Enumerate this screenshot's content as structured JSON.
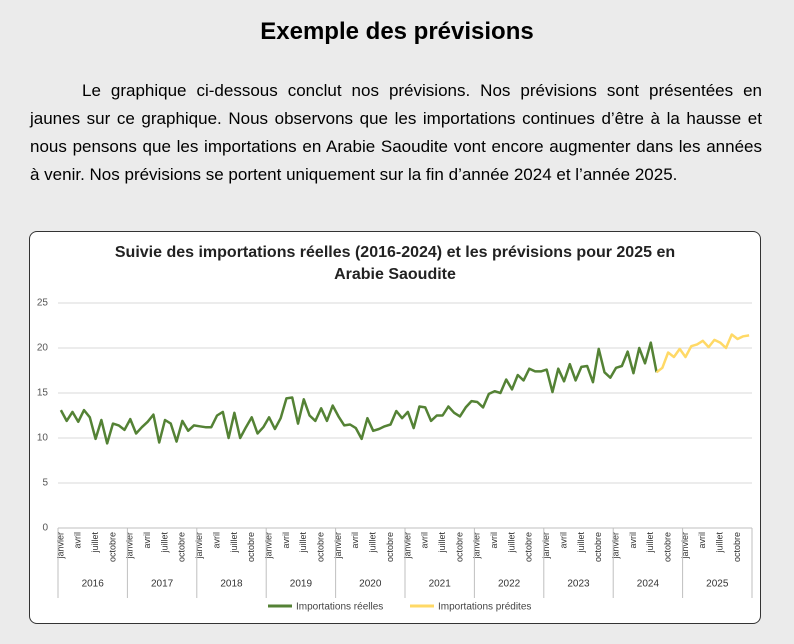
{
  "header": {
    "title": "Exemple des prévisions"
  },
  "paragraph": "Le graphique ci-dessous conclut nos prévisions. Nos prévisions sont présentées en jaunes sur ce graphique. Nous observons que les importations continues d’être à la hausse et nous pensons que les importations en Arabie Saoudite vont encore augmenter dans les années à venir. Nos prévisions se portent uniquement sur la fin d’année 2024 et l’année 2025.",
  "chart_data": {
    "type": "line",
    "title": "Suivie des importations réelles (2016-2024) et les prévisions pour 2025 en Arabie Saoudite",
    "categories": [
      "janvier",
      null,
      null,
      "avril",
      null,
      null,
      "juillet",
      null,
      null,
      "octobre",
      null,
      null,
      "janvier",
      null,
      null,
      "avril",
      null,
      null,
      "juillet",
      null,
      null,
      "octobre",
      null,
      null,
      "janvier",
      null,
      null,
      "avril",
      null,
      null,
      "juillet",
      null,
      null,
      "octobre",
      null,
      null,
      "janvier",
      null,
      null,
      "avril",
      null,
      null,
      "juillet",
      null,
      null,
      "octobre",
      null,
      null,
      "janvier",
      null,
      null,
      "avril",
      null,
      null,
      "juillet",
      null,
      null,
      "octobre",
      null,
      null,
      "janvier",
      null,
      null,
      "avril",
      null,
      null,
      "juillet",
      null,
      null,
      "octobre",
      null,
      null,
      "janvier",
      null,
      null,
      "avril",
      null,
      null,
      "juillet",
      null,
      null,
      "octobre",
      null,
      null,
      "janvier",
      null,
      null,
      "avril",
      null,
      null,
      "juillet",
      null,
      null,
      "octobre",
      null,
      null,
      "janvier",
      null,
      null,
      "avril",
      null,
      null,
      "juillet",
      null,
      null,
      "octobre",
      null,
      null,
      "janvier",
      null,
      null,
      "avril",
      null,
      null,
      "juillet",
      null,
      null,
      "octobre",
      null,
      null
    ],
    "years": [
      "2016",
      "2017",
      "2018",
      "2019",
      "2020",
      "2021",
      "2022",
      "2023",
      "2024",
      "2025"
    ],
    "series": [
      {
        "name": "Importations réelles",
        "color": "#548235",
        "values": [
          13.1,
          11.9,
          12.9,
          11.8,
          13.1,
          12.3,
          9.9,
          12.0,
          9.4,
          11.6,
          11.4,
          10.9,
          12.1,
          10.5,
          11.2,
          11.8,
          12.6,
          9.5,
          12.0,
          11.6,
          9.6,
          11.9,
          10.8,
          11.4,
          11.3,
          11.2,
          11.2,
          12.5,
          12.9,
          10.0,
          12.8,
          10.0,
          11.2,
          12.3,
          10.5,
          11.2,
          12.3,
          11.0,
          12.2,
          14.4,
          14.5,
          11.6,
          14.3,
          12.5,
          11.9,
          13.3,
          11.9,
          13.6,
          12.4,
          11.4,
          11.5,
          11.1,
          9.9,
          12.2,
          10.8,
          11.0,
          11.3,
          11.5,
          13.0,
          12.2,
          12.9,
          11.1,
          13.5,
          13.4,
          11.9,
          12.5,
          12.5,
          13.5,
          12.8,
          12.4,
          13.4,
          14.1,
          14.0,
          13.4,
          14.9,
          15.2,
          15.0,
          16.5,
          15.4,
          17.0,
          16.4,
          17.7,
          17.4,
          17.4,
          17.6,
          15.1,
          17.7,
          16.3,
          18.2,
          16.4,
          17.9,
          18.0,
          16.2,
          19.9,
          17.3,
          16.7,
          17.8,
          18.0,
          19.6,
          17.2,
          20.0,
          18.3,
          20.6,
          17.3,
          null,
          null,
          null,
          null,
          null,
          null,
          null,
          null,
          null,
          null,
          null,
          null,
          null,
          null,
          null,
          null
        ]
      },
      {
        "name": "Importations prédites",
        "color": "#ffd966",
        "values": [
          null,
          null,
          null,
          null,
          null,
          null,
          null,
          null,
          null,
          null,
          null,
          null,
          null,
          null,
          null,
          null,
          null,
          null,
          null,
          null,
          null,
          null,
          null,
          null,
          null,
          null,
          null,
          null,
          null,
          null,
          null,
          null,
          null,
          null,
          null,
          null,
          null,
          null,
          null,
          null,
          null,
          null,
          null,
          null,
          null,
          null,
          null,
          null,
          null,
          null,
          null,
          null,
          null,
          null,
          null,
          null,
          null,
          null,
          null,
          null,
          null,
          null,
          null,
          null,
          null,
          null,
          null,
          null,
          null,
          null,
          null,
          null,
          null,
          null,
          null,
          null,
          null,
          null,
          null,
          null,
          null,
          null,
          null,
          null,
          null,
          null,
          null,
          null,
          null,
          null,
          null,
          null,
          null,
          null,
          null,
          null,
          null,
          null,
          null,
          null,
          null,
          null,
          null,
          17.3,
          17.8,
          19.5,
          19.0,
          19.9,
          19.0,
          20.2,
          20.4,
          20.8,
          20.1,
          20.9,
          20.6,
          20.0,
          21.5,
          21.0,
          21.3,
          21.4
        ]
      }
    ],
    "ylim": [
      0,
      25
    ],
    "yticks": [
      0,
      5,
      10,
      15,
      20,
      25
    ],
    "grid": true
  }
}
